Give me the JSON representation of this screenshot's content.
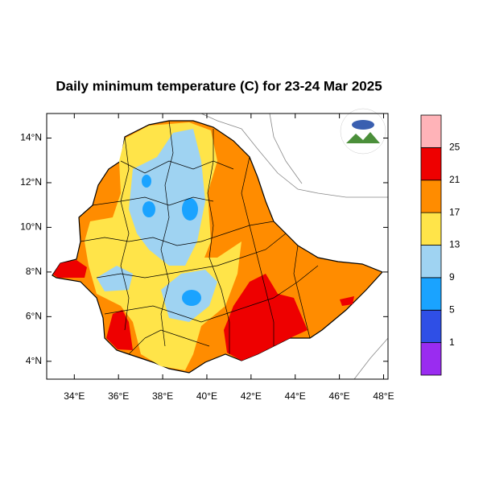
{
  "title": "Daily minimum temperature (C) for 23-24 Mar 2025",
  "map": {
    "xlim": [
      32.75,
      48.2
    ],
    "ylim": [
      3.2,
      15.1
    ],
    "xticks": [
      {
        "value": 34,
        "label": "34°E"
      },
      {
        "value": 36,
        "label": "36°E"
      },
      {
        "value": 38,
        "label": "38°E"
      },
      {
        "value": 40,
        "label": "40°E"
      },
      {
        "value": 42,
        "label": "42°E"
      },
      {
        "value": 44,
        "label": "44°E"
      },
      {
        "value": 46,
        "label": "46°E"
      },
      {
        "value": 48,
        "label": "48°E"
      }
    ],
    "yticks": [
      {
        "value": 4,
        "label": "4°N"
      },
      {
        "value": 6,
        "label": "6°N"
      },
      {
        "value": 8,
        "label": "8°N"
      },
      {
        "value": 10,
        "label": "10°N"
      },
      {
        "value": 12,
        "label": "12°N"
      },
      {
        "value": 14,
        "label": "14°N"
      }
    ]
  },
  "colorbar": {
    "colors": [
      "#9a2cf0",
      "#2f4fe6",
      "#1aa3ff",
      "#9fd3f2",
      "#ffe449",
      "#ff8c00",
      "#ee0000",
      "#ffb3b8"
    ],
    "levels": [
      1,
      5,
      9,
      13,
      17,
      21,
      25
    ]
  }
}
